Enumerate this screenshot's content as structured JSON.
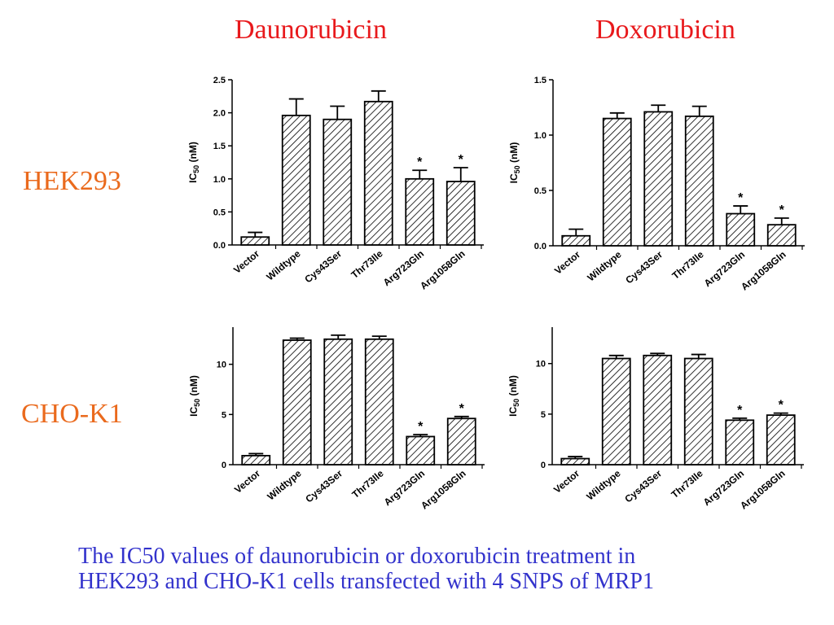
{
  "headers": {
    "col_daunorubicin": "Daunorubicin",
    "col_doxorubicin": "Doxorubicin",
    "row_hek293": "HEK293",
    "row_chok1": "CHO-K1"
  },
  "caption": {
    "line1": "The IC50 values of daunorubicin or doxorubicin treatment in",
    "line2": "HEK293 and CHO-K1 cells transfected with 4 SNPS of MRP1"
  },
  "colors": {
    "bar_stroke": "#000000",
    "hatch": "#000000",
    "col_title": "#e8191c",
    "row_title": "#ea6a1d",
    "caption": "#3333cc"
  },
  "chart_data": [
    {
      "id": "hek-dauno",
      "type": "bar",
      "ylabel": {
        "main": "IC",
        "sub": "50",
        "unit": " (nM)"
      },
      "categories": [
        "Vector",
        "Wildtype",
        "Cys43Ser",
        "Thr73Ile",
        "Arg723Gln",
        "Arg1058Gln"
      ],
      "values": [
        0.12,
        1.96,
        1.9,
        2.17,
        1.0,
        0.96
      ],
      "errors": [
        0.07,
        0.25,
        0.2,
        0.16,
        0.13,
        0.21
      ],
      "significant": [
        false,
        false,
        false,
        false,
        true,
        true
      ],
      "ylim": [
        0,
        2.5
      ],
      "yticks": [
        "0.0",
        "0.5",
        "1.0",
        "1.5",
        "2.0",
        "2.5"
      ],
      "star": "*"
    },
    {
      "id": "hek-doxo",
      "type": "bar",
      "ylabel": {
        "main": "IC",
        "sub": "50",
        "unit": " (nM)"
      },
      "categories": [
        "Vector",
        "Wildtype",
        "Cys43Ser",
        "Thr73Ile",
        "Arg723Gln",
        "Arg1058Gln"
      ],
      "values": [
        0.09,
        1.15,
        1.21,
        1.17,
        0.29,
        0.19
      ],
      "errors": [
        0.06,
        0.05,
        0.06,
        0.09,
        0.07,
        0.06
      ],
      "significant": [
        false,
        false,
        false,
        false,
        true,
        true
      ],
      "ylim": [
        0,
        1.5
      ],
      "yticks": [
        "0.0",
        "0.5",
        "1.0",
        "1.5"
      ],
      "star": "*"
    },
    {
      "id": "cho-dauno",
      "type": "bar",
      "ylabel": {
        "main": "IC",
        "sub": "50",
        "unit": " (nM)"
      },
      "categories": [
        "Vector",
        "Wildtype",
        "Cys43Ser",
        "Thr73Ile",
        "Arg723Gln",
        "Arg1058Gln"
      ],
      "values": [
        0.9,
        12.4,
        12.5,
        12.5,
        2.8,
        4.6
      ],
      "errors": [
        0.2,
        0.2,
        0.4,
        0.3,
        0.2,
        0.2
      ],
      "significant": [
        false,
        false,
        false,
        false,
        true,
        true
      ],
      "ylim": [
        0,
        13.7
      ],
      "yticks": [
        "0",
        "5",
        "10"
      ],
      "star": "*"
    },
    {
      "id": "cho-doxo",
      "type": "bar",
      "ylabel": {
        "main": "IC",
        "sub": "50",
        "unit": " (nM)"
      },
      "categories": [
        "Vector",
        "Wildtype",
        "Cys43Ser",
        "Thr73Ile",
        "Arg723Gln",
        "Arg1058Gln"
      ],
      "values": [
        0.6,
        10.5,
        10.8,
        10.5,
        4.4,
        4.9
      ],
      "errors": [
        0.2,
        0.3,
        0.2,
        0.4,
        0.2,
        0.2
      ],
      "significant": [
        false,
        false,
        false,
        false,
        true,
        true
      ],
      "ylim": [
        0,
        13.6
      ],
      "yticks": [
        "0",
        "5",
        "10"
      ],
      "star": "*"
    }
  ]
}
